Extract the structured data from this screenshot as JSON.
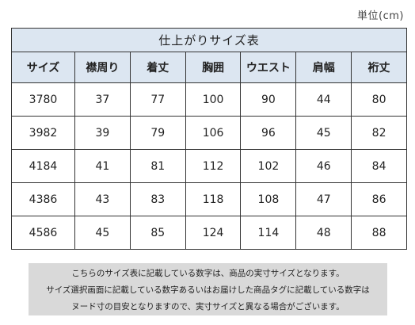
{
  "unit_label": "単位(cm)",
  "table": {
    "title": "仕上がりサイズ表",
    "headers": [
      "サイズ",
      "襟周り",
      "着丈",
      "胸囲",
      "ウエスト",
      "肩幅",
      "裄丈"
    ],
    "rows": [
      [
        "3780",
        "37",
        "77",
        "100",
        "90",
        "44",
        "80"
      ],
      [
        "3982",
        "39",
        "79",
        "106",
        "96",
        "45",
        "82"
      ],
      [
        "4184",
        "41",
        "81",
        "112",
        "102",
        "46",
        "84"
      ],
      [
        "4386",
        "43",
        "83",
        "118",
        "108",
        "47",
        "86"
      ],
      [
        "4586",
        "45",
        "85",
        "124",
        "114",
        "48",
        "88"
      ]
    ]
  },
  "note": {
    "lines": [
      "こちらのサイズ表に記載している数字は、商品の実寸サイズとなります。",
      "サイズ選択画面に記載している数字あるいはお届けした商品タグに記載している数字は",
      "ヌード寸の目安となりますので、実寸サイズと異なる場合がございます。"
    ]
  },
  "colors": {
    "header_bg": "#dce6f1",
    "note_bg": "#d9d9d9",
    "border": "#333333"
  }
}
